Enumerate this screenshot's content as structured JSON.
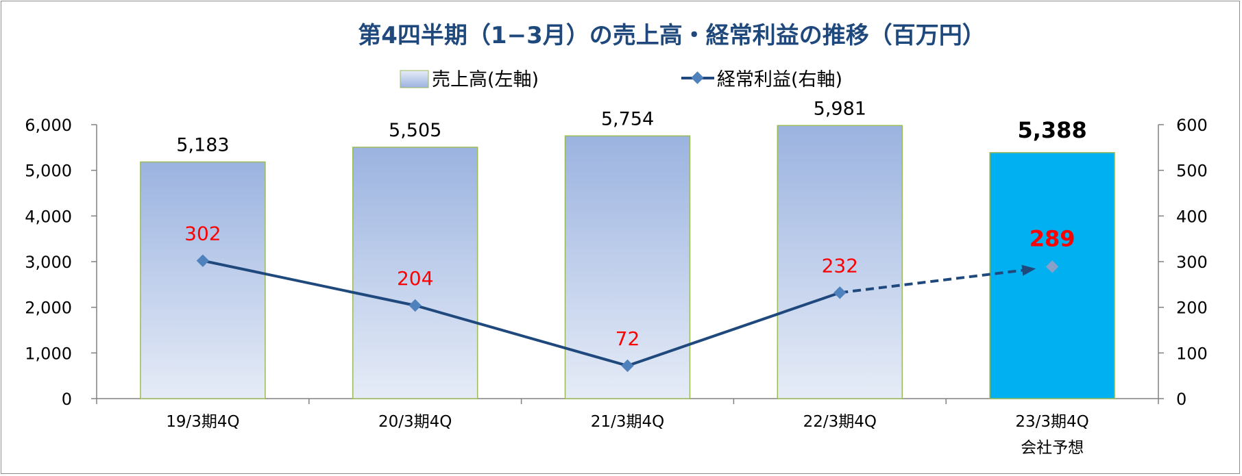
{
  "chart_data": {
    "type": "bar",
    "title": "第4四半期（1−3月）の売上高・経常利益の推移（百万円）",
    "categories": [
      "19/3期4Q",
      "20/3期4Q",
      "21/3期4Q",
      "22/3期4Q",
      "23/3期4Q"
    ],
    "category_sublabels": [
      "",
      "",
      "",
      "",
      "会社予想"
    ],
    "series": [
      {
        "name": "売上高(左軸)",
        "type": "bar",
        "axis": "left",
        "values": [
          5183,
          5505,
          5754,
          5981,
          5388
        ],
        "labels": [
          "5,183",
          "5,505",
          "5,754",
          "5,981",
          "5,388"
        ],
        "forecast_index": 4
      },
      {
        "name": "経常利益(右軸)",
        "type": "line",
        "axis": "right",
        "values": [
          302,
          204,
          72,
          232,
          289
        ],
        "labels": [
          "302",
          "204",
          "72",
          "232",
          "289"
        ],
        "forecast_index": 4
      }
    ],
    "y_left": {
      "lim": [
        0,
        6000
      ],
      "ticks": [
        "0",
        "1,000",
        "2,000",
        "3,000",
        "4,000",
        "5,000",
        "6,000"
      ]
    },
    "y_right": {
      "lim": [
        0,
        600
      ],
      "ticks": [
        "0",
        "100",
        "200",
        "300",
        "400",
        "500",
        "600"
      ]
    },
    "legend_position": "top-center",
    "grid": false,
    "colors": {
      "bar_gradient_top": "#9bb3e0",
      "bar_gradient_bottom": "#e6ecf7",
      "bar_outline": "#9bbb59",
      "forecast_bar": "#00b0f0",
      "line": "#1f497d",
      "marker": "#4f81bd",
      "line_labels": "#ff0000",
      "title": "#1f497d"
    }
  }
}
